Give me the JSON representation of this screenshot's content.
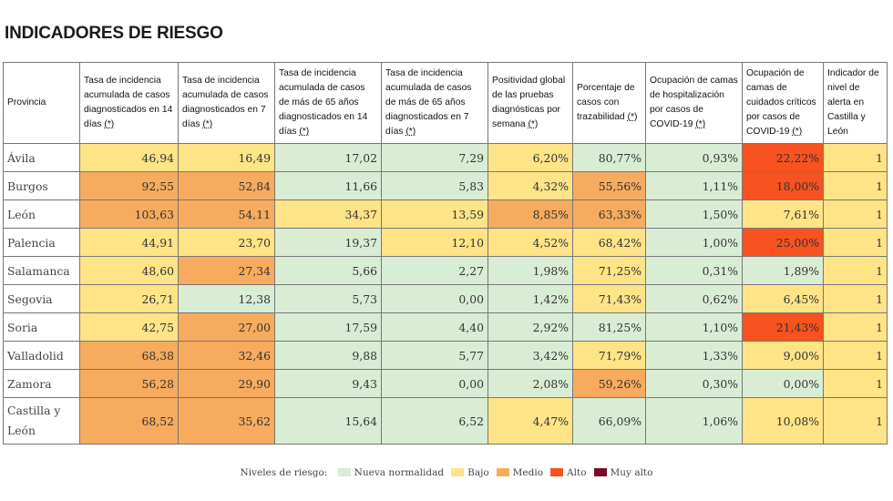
{
  "title": "INDICADORES DE RIESGO",
  "colors": {
    "nueva_normalidad": "#d9edd4",
    "bajo": "#fee387",
    "medio": "#f6ab5e",
    "alto": "#f7521f",
    "muy_alto": "#7a0a2a"
  },
  "table": {
    "headers": [
      {
        "text": "Provincia",
        "ref": ""
      },
      {
        "text": "Tasa de incidencia acumulada de casos diagnosticados en 14 días ",
        "ref": "(*)"
      },
      {
        "text": "Tasa de incidencia acumulada de casos diagnosticados en 7 días ",
        "ref": "(*)"
      },
      {
        "text": "Tasa de incidencia acumulada de casos de más de 65 años diagnosticados en 14 días ",
        "ref": "(*)"
      },
      {
        "text": "Tasa de incidencia acumulada de casos de más de 65 años diagnosticados en 7 días ",
        "ref": "(*)"
      },
      {
        "text": "Positividad global de las pruebas diagnósticas por semana ",
        "ref": "(*)"
      },
      {
        "text": "Porcentaje de casos con trazabilidad ",
        "ref": "(*)"
      },
      {
        "text": "Ocupación de camas de hospitalización por casos de COVID-19 ",
        "ref": "(*)"
      },
      {
        "text": "Ocupación de camas de cuidados críticos por casos de COVID-19 ",
        "ref": "(*)"
      },
      {
        "text": "Indicador de nivel de alerta en Castilla y León",
        "ref": ""
      }
    ],
    "rows": [
      {
        "provincia": "Ávila",
        "values": [
          "46,94",
          "16,49",
          "17,02",
          "7,29",
          "6,20%",
          "80,77%",
          "0,93%",
          "22,22%",
          "1"
        ],
        "levels": [
          "b",
          "b",
          "n",
          "n",
          "b",
          "n",
          "n",
          "a",
          "b"
        ]
      },
      {
        "provincia": "Burgos",
        "values": [
          "92,55",
          "52,84",
          "11,66",
          "5,83",
          "4,32%",
          "55,56%",
          "1,11%",
          "18,00%",
          "1"
        ],
        "levels": [
          "m",
          "m",
          "n",
          "n",
          "b",
          "m",
          "n",
          "a",
          "b"
        ]
      },
      {
        "provincia": "León",
        "values": [
          "103,63",
          "54,11",
          "34,37",
          "13,59",
          "8,85%",
          "63,33%",
          "1,50%",
          "7,61%",
          "1"
        ],
        "levels": [
          "m",
          "m",
          "b",
          "b",
          "m",
          "m",
          "n",
          "b",
          "b"
        ]
      },
      {
        "provincia": "Palencia",
        "values": [
          "44,91",
          "23,70",
          "19,37",
          "12,10",
          "4,52%",
          "68,42%",
          "1,00%",
          "25,00%",
          "1"
        ],
        "levels": [
          "b",
          "b",
          "n",
          "b",
          "b",
          "b",
          "n",
          "a",
          "b"
        ]
      },
      {
        "provincia": "Salamanca",
        "values": [
          "48,60",
          "27,34",
          "5,66",
          "2,27",
          "1,98%",
          "71,25%",
          "0,31%",
          "1,89%",
          "1"
        ],
        "levels": [
          "b",
          "m",
          "n",
          "n",
          "n",
          "b",
          "n",
          "n",
          "b"
        ]
      },
      {
        "provincia": "Segovia",
        "values": [
          "26,71",
          "12,38",
          "5,73",
          "0,00",
          "1,42%",
          "71,43%",
          "0,62%",
          "6,45%",
          "1"
        ],
        "levels": [
          "b",
          "n",
          "n",
          "n",
          "n",
          "b",
          "n",
          "b",
          "b"
        ]
      },
      {
        "provincia": "Soria",
        "values": [
          "42,75",
          "27,00",
          "17,59",
          "4,40",
          "2,92%",
          "81,25%",
          "1,10%",
          "21,43%",
          "1"
        ],
        "levels": [
          "b",
          "m",
          "n",
          "n",
          "n",
          "n",
          "n",
          "a",
          "b"
        ]
      },
      {
        "provincia": "Valladolid",
        "values": [
          "68,38",
          "32,46",
          "9,88",
          "5,77",
          "3,42%",
          "71,79%",
          "1,33%",
          "9,00%",
          "1"
        ],
        "levels": [
          "m",
          "m",
          "n",
          "n",
          "n",
          "b",
          "n",
          "b",
          "b"
        ]
      },
      {
        "provincia": "Zamora",
        "values": [
          "56,28",
          "29,90",
          "9,43",
          "0,00",
          "2,08%",
          "59,26%",
          "0,30%",
          "0,00%",
          "1"
        ],
        "levels": [
          "m",
          "m",
          "n",
          "n",
          "n",
          "m",
          "n",
          "n",
          "b"
        ]
      },
      {
        "provincia": "Castilla y León",
        "values": [
          "68,52",
          "35,62",
          "15,64",
          "6,52",
          "4,47%",
          "66,09%",
          "1,06%",
          "10,08%",
          "1"
        ],
        "levels": [
          "m",
          "m",
          "n",
          "n",
          "b",
          "n",
          "n",
          "b",
          "b"
        ],
        "tall": true
      }
    ]
  },
  "legend": {
    "label": "Niveles de riesgo:",
    "items": [
      {
        "label": "Nueva normalidad",
        "level": "n"
      },
      {
        "label": "Bajo",
        "level": "b"
      },
      {
        "label": "Medio",
        "level": "m"
      },
      {
        "label": "Alto",
        "level": "a"
      },
      {
        "label": "Muy alto",
        "level": "ma"
      }
    ]
  }
}
